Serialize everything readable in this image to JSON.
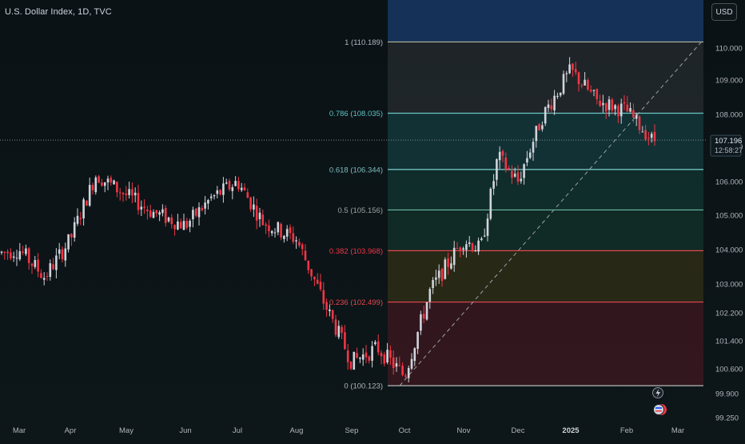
{
  "header": {
    "symbol_title": "U.S. Dollar Index, 1D, TVC",
    "currency": "USD"
  },
  "price_tag": {
    "last_price": "107.196",
    "countdown": "12:58:27"
  },
  "colors": {
    "background": "#0c1418",
    "up_candle": "#d1d4dc",
    "down_candle": "#f23645",
    "fib_line": "#b5b89a",
    "fib_786_label": "#5fc2c2",
    "fib_382_label": "#f23645",
    "axis_text": "#b2b5be"
  },
  "chart_data": {
    "type": "candlestick",
    "title": "U.S. Dollar Index, 1D, TVC",
    "ylim": [
      99.25,
      110.9
    ],
    "x_tick_labels": [
      "Mar",
      "Apr",
      "May",
      "Jun",
      "Jul",
      "Aug",
      "Sep",
      "Oct",
      "Nov",
      "Dec",
      "2025",
      "Feb",
      "Mar"
    ],
    "y_tick_labels": [
      "110.000",
      "109.000",
      "108.000",
      "107.000",
      "106.000",
      "105.000",
      "104.000",
      "103.000",
      "102.200",
      "101.400",
      "100.600",
      "99.900",
      "99.250"
    ],
    "last_price": 107.196,
    "fibonacci_retracement": {
      "levels": [
        {
          "label": "1 (110.189)",
          "ratio": 1,
          "price": 110.189
        },
        {
          "label": "0.786 (108.035)",
          "ratio": 0.786,
          "price": 108.035
        },
        {
          "label": "0.618 (106.344)",
          "ratio": 0.618,
          "price": 106.344
        },
        {
          "label": "0.5 (105.156)",
          "ratio": 0.5,
          "price": 105.156
        },
        {
          "label": "0.382 (103.968)",
          "ratio": 0.382,
          "price": 103.968
        },
        {
          "label": "0.236 (102.499)",
          "ratio": 0.236,
          "price": 102.499
        },
        {
          "label": "0 (100.123)",
          "ratio": 0,
          "price": 100.123
        }
      ]
    },
    "series": [
      {
        "name": "",
        "close_path": [
          {
            "x": "Mar",
            "y": 104.0
          },
          {
            "x": "Mar",
            "y": 103.2
          },
          {
            "x": "Apr",
            "y": 104.3
          },
          {
            "x": "Apr",
            "y": 106.2
          },
          {
            "x": "May",
            "y": 105.6
          },
          {
            "x": "May",
            "y": 105.1
          },
          {
            "x": "Jun",
            "y": 104.7
          },
          {
            "x": "Jun",
            "y": 105.5
          },
          {
            "x": "Jul",
            "y": 106.0
          },
          {
            "x": "Jul",
            "y": 104.8
          },
          {
            "x": "Aug",
            "y": 104.3
          },
          {
            "x": "Aug",
            "y": 102.6
          },
          {
            "x": "Sep",
            "y": 100.8
          },
          {
            "x": "Sep",
            "y": 101.2
          },
          {
            "x": "Oct",
            "y": 100.4
          },
          {
            "x": "Oct",
            "y": 102.8
          },
          {
            "x": "Nov",
            "y": 104.3
          },
          {
            "x": "Nov",
            "y": 104.0
          },
          {
            "x": "Nov",
            "y": 106.7
          },
          {
            "x": "Dec",
            "y": 106.0
          },
          {
            "x": "Dec",
            "y": 108.0
          },
          {
            "x": "2025",
            "y": 109.3
          },
          {
            "x": "2025",
            "y": 108.4
          },
          {
            "x": "Feb",
            "y": 108.1
          },
          {
            "x": "Feb",
            "y": 107.2
          }
        ]
      }
    ]
  }
}
